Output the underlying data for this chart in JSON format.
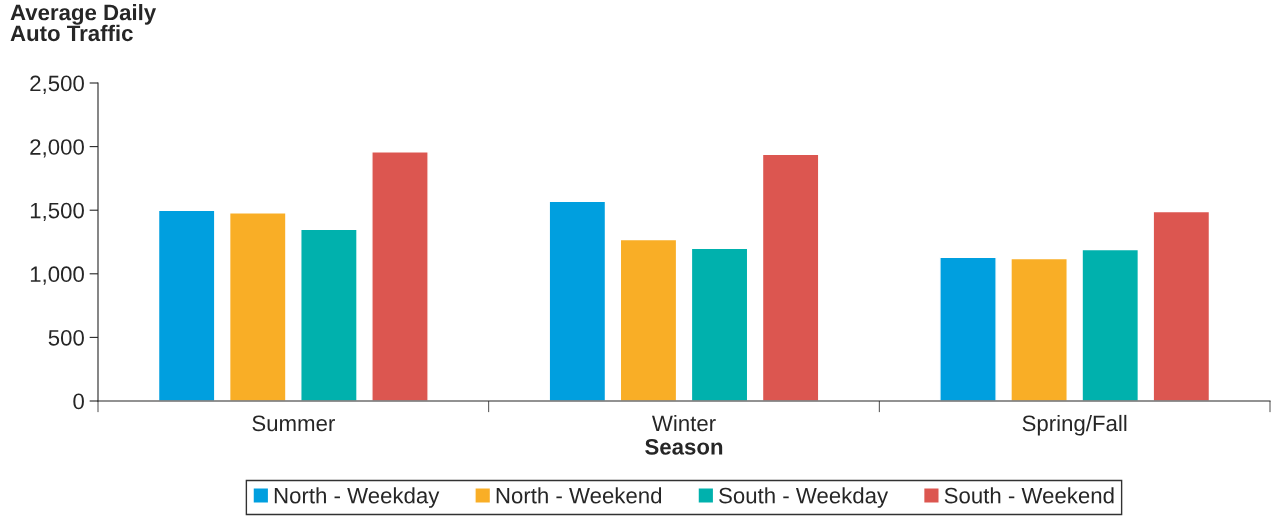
{
  "chart_data": {
    "type": "bar",
    "ylabel": "Average Daily\nAuto Traffic",
    "xlabel": "Season",
    "categories": [
      "Summer",
      "Winter",
      "Spring/Fall"
    ],
    "series": [
      {
        "name": "North - Weekday",
        "color": "#009fdf",
        "values": [
          1500,
          1570,
          1130
        ]
      },
      {
        "name": "North - Weekend",
        "color": "#f9ae26",
        "values": [
          1480,
          1270,
          1120
        ]
      },
      {
        "name": "South - Weekday",
        "color": "#00b1ad",
        "values": [
          1350,
          1200,
          1190
        ]
      },
      {
        "name": "South - Weekend",
        "color": "#dc5650",
        "values": [
          1960,
          1940,
          1490
        ]
      }
    ],
    "ylim": [
      0,
      2500
    ],
    "yticks": [
      {
        "value": 0,
        "label": "0"
      },
      {
        "value": 500,
        "label": "500"
      },
      {
        "value": 1000,
        "label": "1,000"
      },
      {
        "value": 1500,
        "label": "1,500"
      },
      {
        "value": 2000,
        "label": "2,000"
      },
      {
        "value": 2500,
        "label": "2,500"
      }
    ],
    "grid": false,
    "legend": "bottom"
  }
}
